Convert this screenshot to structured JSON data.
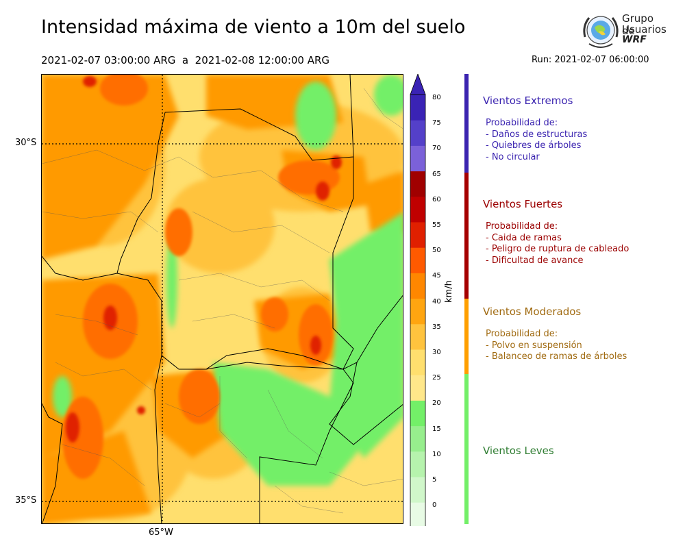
{
  "header": {
    "title": "Intensidad máxima de viento a 10m del suelo",
    "period": "2021-02-07 03:00:00 ARG  a  2021-02-08 12:00:00 ARG",
    "run": "Run: 2021-02-07 06:00:00"
  },
  "logo": {
    "line1": "Grupo de",
    "line2": "Usuarios",
    "line3": "WRF"
  },
  "map": {
    "lat_labels": [
      "30°S",
      "35°S"
    ],
    "lon_label": "65°W",
    "field_colors": {
      "leve": "#73ef68",
      "bajo": "#ffdf6e",
      "medio": "#ffc33e",
      "alto": "#ff9a00",
      "muy_alto": "#ff6e00",
      "fuerte": "#e02000"
    }
  },
  "colorbar": {
    "unit": "km/h",
    "ticks": [
      "0",
      "5",
      "10",
      "15",
      "20",
      "25",
      "30",
      "35",
      "40",
      "45",
      "50",
      "55",
      "60",
      "65",
      "70",
      "75",
      "80"
    ],
    "colors": [
      "#e8fbe5",
      "#d0f7ca",
      "#b6f3ad",
      "#97ee8d",
      "#73ef68",
      "#ffe78a",
      "#ffdf6e",
      "#ffc33e",
      "#ffa510",
      "#ff8700",
      "#ff5a00",
      "#e02000",
      "#c00000",
      "#a00000",
      "#7b61d9",
      "#5440c9",
      "#3a23b5"
    ],
    "over_color": "#3a23b5",
    "under_color": "#ffffff"
  },
  "categories": [
    {
      "title": "Vientos Extremos",
      "color": "#3b24b0",
      "bar_color": "#3b24b0",
      "lines": [
        "Probabilidad de:",
        "- Daños de estructuras",
        "- Quiebres de árboles",
        "- No circular"
      ]
    },
    {
      "title": "Vientos Fuertes",
      "color": "#9b0000",
      "bar_color": "#a50000",
      "lines": [
        "Probabilidad de:",
        "- Caida de ramas",
        "- Peligro de ruptura de cableado",
        "- Dificultad de avance"
      ]
    },
    {
      "title": "Vientos Moderados",
      "color": "#a06a10",
      "bar_color": "#ff9f00",
      "lines": [
        "Probabilidad de:",
        "- Polvo en suspensión",
        "- Balanceo de ramas de árboles"
      ]
    },
    {
      "title": "Vientos Leves",
      "color": "#2f7d32",
      "bar_color": "#73ef68",
      "lines": []
    }
  ]
}
